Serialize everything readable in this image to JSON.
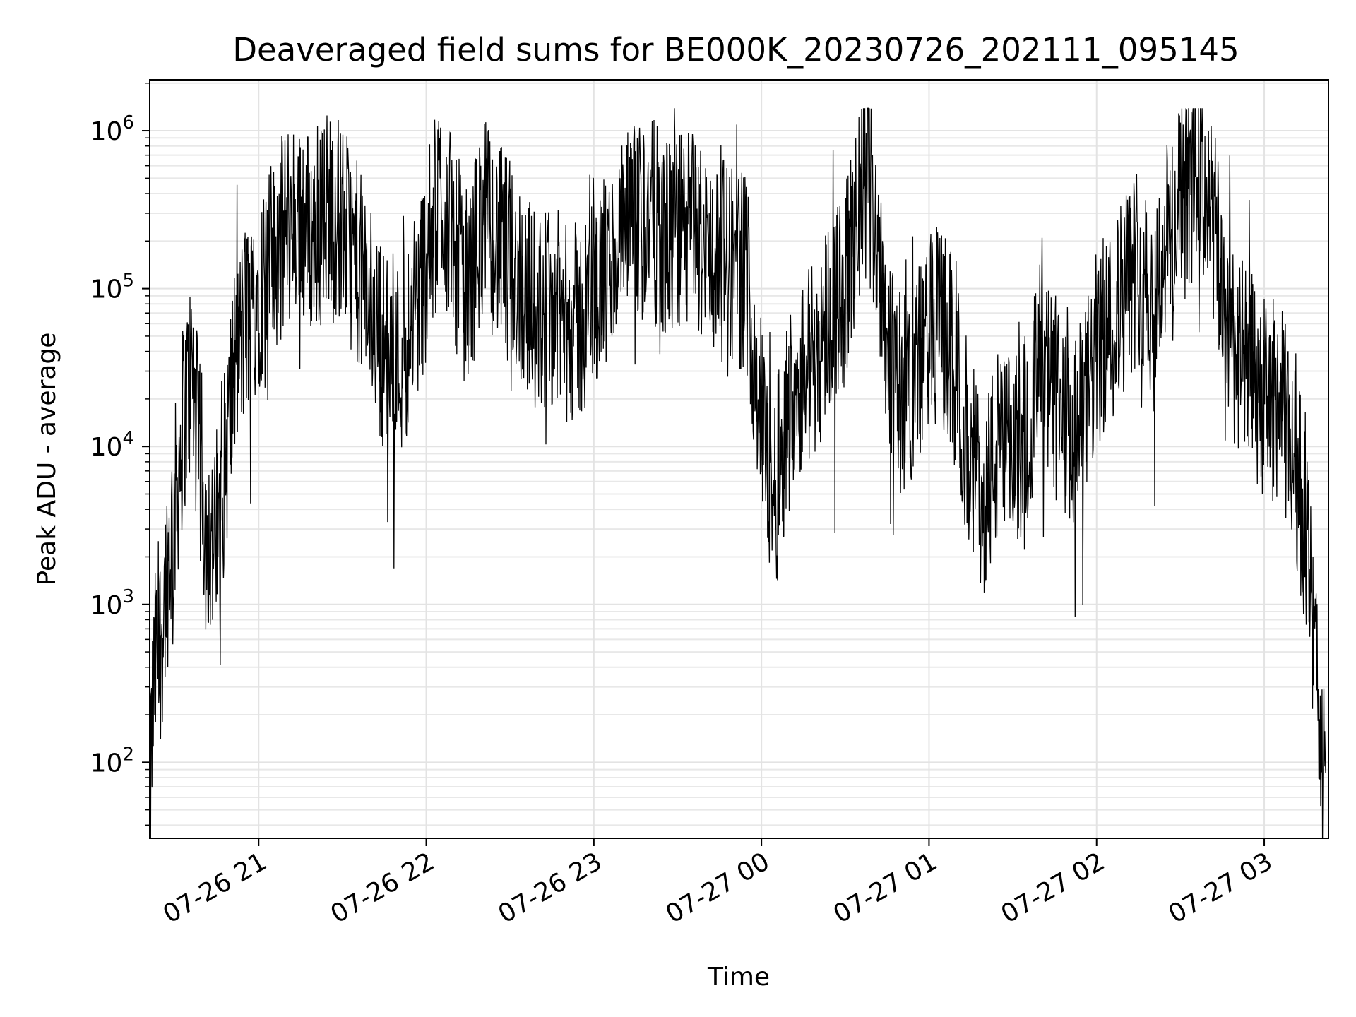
{
  "chart_data": {
    "type": "line",
    "title": "Deaveraged field sums for BE000K_20230726_202111_095145",
    "xlabel": "Time",
    "ylabel": "Peak ADU - average",
    "yscale": "log",
    "ylim": [
      33,
      2100000
    ],
    "xlim": [
      "07-26 20:21",
      "07-27 03:23"
    ],
    "grid": true,
    "line_color": "#000000",
    "x_ticks": [
      {
        "label": "07-26 21",
        "t": "2023-07-26T21:00"
      },
      {
        "label": "07-26 22",
        "t": "2023-07-26T22:00"
      },
      {
        "label": "07-26 23",
        "t": "2023-07-26T23:00"
      },
      {
        "label": "07-27 00",
        "t": "2023-07-27T00:00"
      },
      {
        "label": "07-27 01",
        "t": "2023-07-27T01:00"
      },
      {
        "label": "07-27 02",
        "t": "2023-07-27T02:00"
      },
      {
        "label": "07-27 03",
        "t": "2023-07-27T03:00"
      }
    ],
    "y_ticks": [
      {
        "base": "10",
        "exp": "2",
        "value": 100
      },
      {
        "base": "10",
        "exp": "3",
        "value": 1000
      },
      {
        "base": "10",
        "exp": "4",
        "value": 10000
      },
      {
        "base": "10",
        "exp": "5",
        "value": 100000
      },
      {
        "base": "10",
        "exp": "6",
        "value": 1000000
      }
    ],
    "series": [
      {
        "x": [
          "20:21",
          "20:22",
          "20:23",
          "20:25",
          "20:27",
          "20:30",
          "20:33",
          "20:36",
          "20:38",
          "20:41",
          "20:45",
          "20:48",
          "20:51",
          "20:55",
          "21:00",
          "21:05",
          "21:10",
          "21:15",
          "21:20",
          "21:25",
          "21:30",
          "21:35",
          "21:40",
          "21:45",
          "21:50",
          "21:55",
          "22:00",
          "22:05",
          "22:10",
          "22:15",
          "22:20",
          "22:25",
          "22:30",
          "22:35",
          "22:40",
          "22:45",
          "22:50",
          "22:55",
          "23:00",
          "23:05",
          "23:10",
          "23:15",
          "23:20",
          "23:25",
          "23:30",
          "23:35",
          "23:40",
          "23:45",
          "23:50",
          "23:55",
          "23:59",
          "00:02",
          "00:05",
          "00:08",
          "00:12",
          "00:15",
          "00:20",
          "00:25",
          "00:30",
          "00:35",
          "00:38",
          "00:42",
          "00:45",
          "00:50",
          "00:55",
          "01:00",
          "01:05",
          "01:10",
          "01:15",
          "01:20",
          "01:25",
          "01:30",
          "01:35",
          "01:40",
          "01:45",
          "01:50",
          "01:55",
          "02:00",
          "02:05",
          "02:10",
          "02:15",
          "02:20",
          "02:25",
          "02:30",
          "02:35",
          "02:40",
          "02:45",
          "02:50",
          "02:55",
          "03:00",
          "03:05",
          "03:10",
          "03:13",
          "03:15",
          "03:17",
          "03:19",
          "03:21",
          "03:22"
        ],
        "y": [
          50,
          200,
          400,
          600,
          1500,
          4000,
          15000,
          30000,
          12000,
          3000,
          2000,
          8000,
          30000,
          60000,
          100000,
          150000,
          250000,
          300000,
          200000,
          350000,
          250000,
          150000,
          80000,
          40000,
          35000,
          60000,
          150000,
          400000,
          200000,
          90000,
          300000,
          200000,
          150000,
          100000,
          70000,
          80000,
          60000,
          60000,
          100000,
          120000,
          200000,
          250000,
          300000,
          200000,
          220000,
          250000,
          180000,
          150000,
          150000,
          120000,
          20000,
          8000,
          5000,
          12000,
          25000,
          30000,
          40000,
          80000,
          100000,
          300000,
          500000,
          200000,
          50000,
          20000,
          30000,
          50000,
          60000,
          25000,
          8000,
          5000,
          10000,
          8000,
          15000,
          30000,
          20000,
          10000,
          15000,
          40000,
          60000,
          100000,
          150000,
          80000,
          200000,
          300000,
          500000,
          400000,
          100000,
          40000,
          30000,
          20000,
          20000,
          10000,
          5000,
          3000,
          800,
          300,
          100,
          50
        ]
      }
    ]
  }
}
